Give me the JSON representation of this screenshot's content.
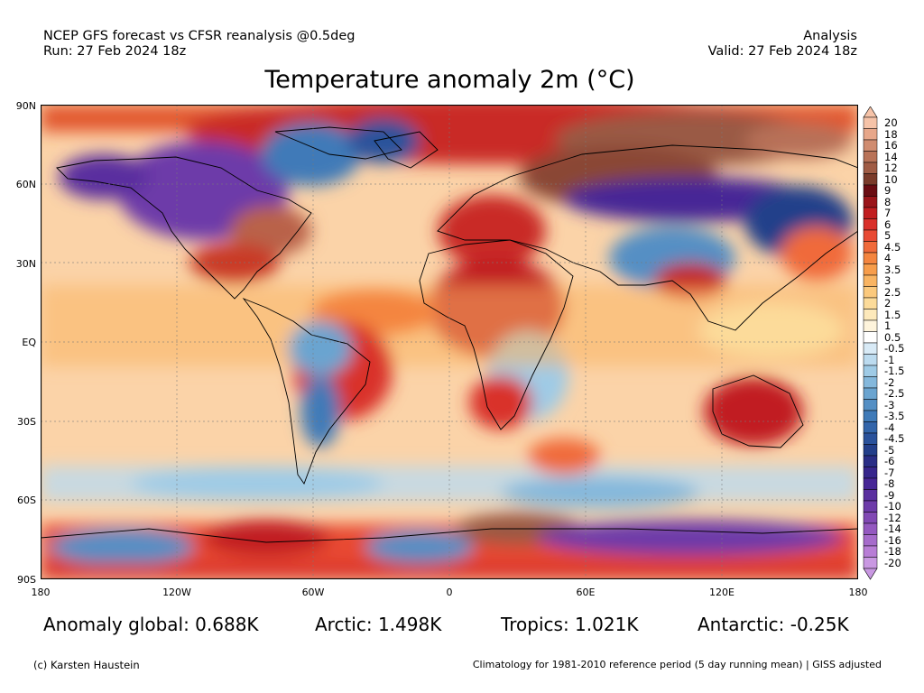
{
  "header": {
    "left_line1": "NCEP GFS forecast vs CFSR reanalysis @0.5deg",
    "left_line2": "Run: 27 Feb 2024 18z",
    "right_line1": "Analysis",
    "right_line2": "Valid: 27 Feb 2024 18z"
  },
  "title": "Temperature anomaly 2m (°C)",
  "lat_labels": [
    "90N",
    "60N",
    "30N",
    "EQ",
    "30S",
    "60S",
    "90S"
  ],
  "lon_labels": [
    "180",
    "120W",
    "60W",
    "0",
    "60E",
    "120E",
    "180"
  ],
  "colorbar": {
    "labels": [
      "20",
      "18",
      "16",
      "14",
      "12",
      "10",
      "9",
      "8",
      "7",
      "6",
      "5",
      "4.5",
      "4",
      "3.5",
      "3",
      "2.5",
      "2",
      "1.5",
      "1",
      "0.5",
      "-0.5",
      "-1",
      "-1.5",
      "-2",
      "-2.5",
      "-3",
      "-3.5",
      "-4",
      "-4.5",
      "-5",
      "-6",
      "-7",
      "-8",
      "-9",
      "-10",
      "-12",
      "-14",
      "-16",
      "-18",
      "-20"
    ],
    "colors": [
      "#f6c3a8",
      "#e7a78a",
      "#d08c70",
      "#b97358",
      "#a05c45",
      "#7a3b2a",
      "#6a0c12",
      "#9a1419",
      "#c11e20",
      "#d9302a",
      "#e84a33",
      "#f06a3a",
      "#f4853f",
      "#f79d4b",
      "#f9b462",
      "#fbc97d",
      "#fcdb9a",
      "#fde9bb",
      "#fef4dc",
      "#ffffff",
      "#d8eaf6",
      "#bcdbef",
      "#9fcbe6",
      "#84b8dc",
      "#6aa4d0",
      "#548fc4",
      "#3f7ab8",
      "#3365aa",
      "#2a529b",
      "#233f8a",
      "#2a2e86",
      "#37268c",
      "#472696",
      "#5a2f9f",
      "#6d3ba9",
      "#8149b4",
      "#9459c0",
      "#a66bcb",
      "#b87dd6",
      "#c998e2"
    ]
  },
  "stats": {
    "global": "Anomaly global: 0.688K",
    "arctic": "Arctic: 1.498K",
    "tropics": "Tropics: 1.021K",
    "antarctic": "Antarctic: -0.25K"
  },
  "footer": {
    "credit": "(c) Karsten Haustein",
    "note": "Climatology for 1981-2010 reference period (5 day running mean) | GISS adjusted"
  }
}
